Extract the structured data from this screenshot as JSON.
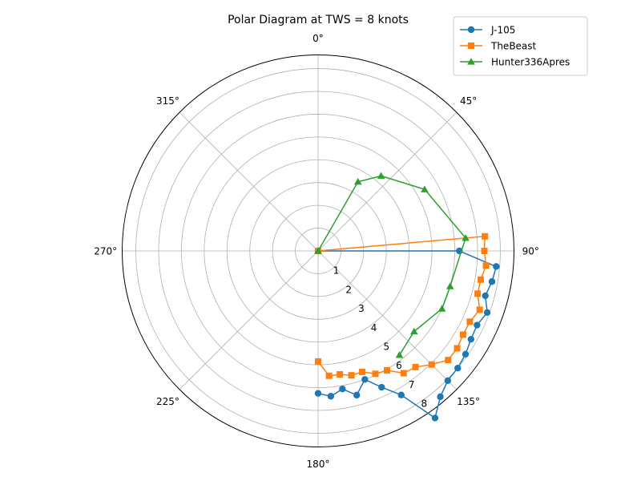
{
  "chart_data": {
    "type": "polar-line",
    "title": "Polar Diagram at TWS = 8 knots",
    "theta_direction": "clockwise",
    "theta_zero": "top",
    "theta_tick_labels": [
      "0°",
      "45°",
      "90°",
      "135°",
      "180°",
      "225°",
      "270°",
      "315°"
    ],
    "theta_ticks_deg": [
      0,
      45,
      90,
      135,
      180,
      225,
      270,
      315
    ],
    "r_ticks": [
      1,
      2,
      3,
      4,
      5,
      6,
      7,
      8
    ],
    "r_tick_labels": [
      "1",
      "2",
      "3",
      "4",
      "5",
      "6",
      "7",
      "8"
    ],
    "rlim": [
      0,
      8.6
    ],
    "grid": true,
    "legend_position": "top-right",
    "series": [
      {
        "name": "J-105",
        "color": "#1f77b4",
        "marker": "circle",
        "points": [
          [
            0,
            0
          ],
          [
            90,
            6.2
          ],
          [
            95,
            7.85
          ],
          [
            100,
            7.75
          ],
          [
            105,
            7.6
          ],
          [
            110,
            7.9
          ],
          [
            115,
            7.7
          ],
          [
            120,
            7.75
          ],
          [
            125,
            7.9
          ],
          [
            130,
            8.0
          ],
          [
            135,
            8.05
          ],
          [
            140,
            8.35
          ],
          [
            145,
            8.95
          ],
          [
            150,
            7.3
          ],
          [
            155,
            6.6
          ],
          [
            160,
            6.0
          ],
          [
            165,
            6.55
          ],
          [
            170,
            6.15
          ],
          [
            175,
            6.4
          ],
          [
            180,
            6.25
          ]
        ]
      },
      {
        "name": "TheBeast",
        "color": "#ff7f0e",
        "marker": "square",
        "points": [
          [
            0,
            0
          ],
          [
            85,
            7.35
          ],
          [
            90,
            7.3
          ],
          [
            95,
            7.4
          ],
          [
            100,
            7.25
          ],
          [
            105,
            7.25
          ],
          [
            110,
            7.55
          ],
          [
            115,
            7.35
          ],
          [
            120,
            7.35
          ],
          [
            125,
            7.45
          ],
          [
            130,
            7.45
          ],
          [
            135,
            7.05
          ],
          [
            140,
            6.65
          ],
          [
            145,
            6.55
          ],
          [
            150,
            6.05
          ],
          [
            155,
            5.95
          ],
          [
            160,
            5.65
          ],
          [
            165,
            5.65
          ],
          [
            170,
            5.5
          ],
          [
            175,
            5.5
          ],
          [
            180,
            4.85
          ]
        ]
      },
      {
        "name": "Hunter336Apres",
        "color": "#2ca02c",
        "marker": "triangle",
        "points": [
          [
            0,
            0
          ],
          [
            30,
            3.5
          ],
          [
            40,
            4.3
          ],
          [
            60,
            5.4
          ],
          [
            85,
            6.5
          ],
          [
            105,
            6.0
          ],
          [
            115,
            6.0
          ],
          [
            130,
            5.5
          ],
          [
            142,
            5.8
          ]
        ]
      }
    ]
  }
}
